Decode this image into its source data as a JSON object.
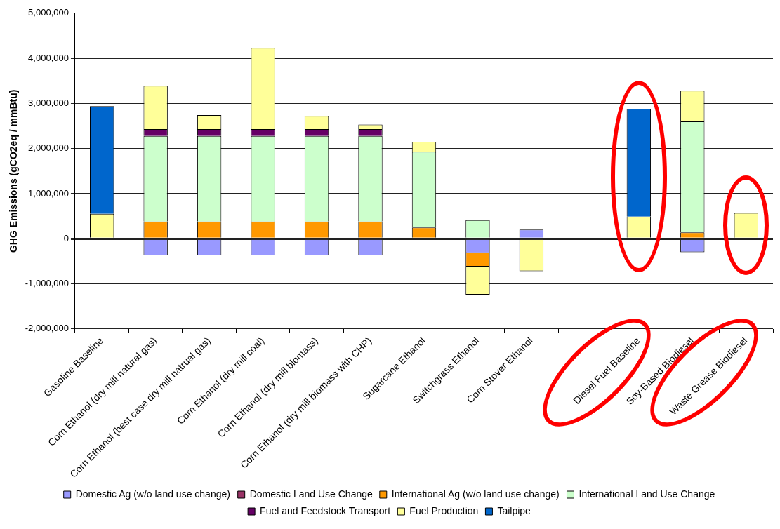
{
  "chart_data": {
    "type": "bar",
    "stacked": true,
    "ylabel": "GHG Emissions (gCO2eq / mmBtu)",
    "categories": [
      "Gasoline Baseline",
      "Corn Ethanol (dry mill natural gas)",
      "Corn Ethanol (best case dry mill natrual gas)",
      "Corn Ethanol (dry mill coal)",
      "Corn Ethanol (dry mill biomass)",
      "Corn Ethanol (dry mill biomass with CHP)",
      "Sugarcane Ethanol",
      "Switchgrass Ethanol",
      "Corn Stover Ethanol",
      null,
      "Diesel Fuel Baseline",
      "Soy-Based Biodiesel",
      "Waste Grease Biodiesel"
    ],
    "series": [
      {
        "name": "Domestic Ag (w/o land use change)",
        "color": "#9999ff",
        "values": [
          null,
          -370000,
          -370000,
          -370000,
          -370000,
          -370000,
          null,
          -320000,
          200000,
          null,
          null,
          -300000,
          null
        ]
      },
      {
        "name": "Domestic Land Use Change",
        "color": "#993366",
        "values": [
          null,
          null,
          null,
          null,
          null,
          null,
          null,
          null,
          null,
          null,
          null,
          null,
          null
        ]
      },
      {
        "name": "International Ag (w/o land use change)",
        "color": "#ff9900",
        "values": [
          null,
          380000,
          380000,
          380000,
          380000,
          380000,
          250000,
          -300000,
          null,
          null,
          null,
          140000,
          null
        ]
      },
      {
        "name": "International Land Use Change",
        "color": "#ccffcc",
        "values": [
          null,
          1900000,
          1900000,
          1900000,
          1900000,
          1900000,
          1680000,
          410000,
          null,
          null,
          null,
          2460000,
          null
        ]
      },
      {
        "name": "Fuel and Feedstock Transport",
        "color": "#660066",
        "values": [
          null,
          150000,
          150000,
          150000,
          150000,
          150000,
          null,
          null,
          null,
          null,
          null,
          null,
          null
        ]
      },
      {
        "name": "Fuel Production",
        "color": "#ffff99",
        "values": [
          550000,
          960000,
          310000,
          1800000,
          290000,
          100000,
          220000,
          -620000,
          -720000,
          null,
          490000,
          680000,
          570000
        ]
      },
      {
        "name": "Tailpipe",
        "color": "#0066cc",
        "values": [
          2390000,
          null,
          null,
          null,
          null,
          null,
          null,
          null,
          null,
          null,
          2390000,
          null,
          null
        ]
      }
    ],
    "ylim": [
      -2000000,
      5000000
    ],
    "yticks": [
      {
        "value": -2000000,
        "label": "-2,000,000"
      },
      {
        "value": -1000000,
        "label": "-1,000,000"
      },
      {
        "value": 0,
        "label": "0"
      },
      {
        "value": 1000000,
        "label": "1,000,000"
      },
      {
        "value": 2000000,
        "label": "2,000,000"
      },
      {
        "value": 3000000,
        "label": "3,000,000"
      },
      {
        "value": 4000000,
        "label": "4,000,000"
      },
      {
        "value": 5000000,
        "label": "5,000,000"
      }
    ],
    "grid": "y",
    "legend": "bottom"
  }
}
